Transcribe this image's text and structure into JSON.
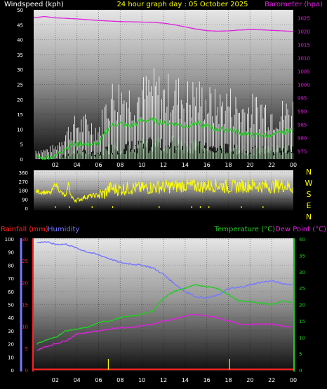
{
  "header": {
    "windspeed_label": "Windspeed (kph)",
    "title": "24 hour graph day : 05 October 2025",
    "barometer_label": "Barometer (hpa)"
  },
  "lower_header": {
    "rainfall_label": "Rainfall (mm)",
    "humidity_label": "Humidity",
    "temperature_label": "Temperature (°C)",
    "dewpoint_label": "Dew Point (°C)"
  },
  "compass": [
    "N",
    "W",
    "S",
    "E",
    "N"
  ],
  "colors": {
    "wind_gust": "#ffffff",
    "wind_avg": "#22cc22",
    "wind_low": "#ccffcc",
    "barometer": "#dd22dd",
    "direction": "#ffff00",
    "temperature": "#22cc22",
    "dewpoint": "#dd22dd",
    "humidity": "#7777ff",
    "rainfall": "#ff2222",
    "title": "#ffff00"
  },
  "chart_data": [
    {
      "type": "line",
      "id": "wind-baro",
      "xticks": [
        "02",
        "04",
        "06",
        "08",
        "10",
        "12",
        "14",
        "16",
        "18",
        "20",
        "22",
        "00"
      ],
      "left_axis": {
        "label": "Windspeed (kph)",
        "ylim": [
          0,
          50
        ],
        "ticks": [
          0,
          5,
          10,
          15,
          20,
          25,
          30,
          35,
          40,
          45,
          50
        ]
      },
      "right_axis": {
        "label": "Barometer (hpa)",
        "ylim": [
          972,
          1028
        ],
        "ticks": [
          975,
          980,
          985,
          990,
          995,
          1000,
          1005,
          1010,
          1015,
          1020,
          1025
        ]
      },
      "series": [
        {
          "name": "Windspeed (kph)",
          "axis": "left",
          "kind": "gust",
          "x": [
            0.2,
            1,
            2,
            3,
            4,
            5,
            6,
            7,
            8,
            9,
            10,
            11,
            12,
            13,
            14,
            15,
            16,
            17,
            18,
            19,
            20,
            21,
            22,
            23,
            24
          ],
          "y": [
            3,
            3,
            4,
            9,
            12,
            12,
            10,
            21,
            22,
            21,
            22,
            24,
            22,
            23,
            21,
            22,
            20,
            18,
            20,
            17,
            17,
            18,
            16,
            16,
            17
          ]
        },
        {
          "name": "Windspeed (kph)",
          "axis": "left",
          "kind": "average",
          "x": [
            0.2,
            1,
            2,
            3,
            4,
            5,
            6,
            7,
            8,
            9,
            10,
            11,
            12,
            13,
            14,
            15,
            16,
            17,
            18,
            19,
            20,
            21,
            22,
            23,
            24
          ],
          "y": [
            0.5,
            0.5,
            1,
            4,
            5,
            5,
            5,
            11,
            12,
            11,
            13,
            13,
            12,
            12,
            11,
            12,
            11,
            10,
            10,
            9,
            8,
            8,
            8,
            9,
            10
          ]
        },
        {
          "name": "Windspeed (kph)",
          "axis": "left",
          "kind": "low",
          "x": [
            0.2,
            1,
            2,
            3,
            4,
            5,
            6,
            7,
            8,
            9,
            10,
            11,
            12,
            13,
            14,
            15,
            16,
            17,
            18,
            19,
            20,
            21,
            22,
            23,
            24
          ],
          "y": [
            0,
            0,
            0,
            2,
            3,
            3,
            2,
            5,
            5,
            6,
            6,
            7,
            6,
            7,
            6,
            6,
            5,
            5,
            5,
            4,
            4,
            4,
            4,
            4,
            5
          ]
        },
        {
          "name": "Barometer (hpa)",
          "axis": "right",
          "x": [
            0,
            1,
            2,
            3,
            4,
            5,
            6,
            7,
            8,
            9,
            10,
            11,
            12,
            13,
            14,
            15,
            16,
            17,
            18,
            19,
            20,
            21,
            22,
            23,
            24
          ],
          "y": [
            1025,
            1025.5,
            1025,
            1024.8,
            1024.6,
            1024.3,
            1024,
            1023.8,
            1023.6,
            1023.5,
            1023.4,
            1023.3,
            1023,
            1022.4,
            1021.6,
            1020.8,
            1020.2,
            1020,
            1020.1,
            1020.4,
            1020.6,
            1020.5,
            1020.3,
            1020.1,
            1019.9
          ]
        }
      ]
    },
    {
      "type": "line",
      "id": "wind-direction",
      "xticks": [
        "02",
        "04",
        "06",
        "08",
        "10",
        "12",
        "14",
        "16",
        "18",
        "20",
        "22",
        "00"
      ],
      "left_axis": {
        "ylim": [
          0,
          360
        ],
        "ticks": [
          0,
          90,
          180,
          270,
          360
        ]
      },
      "series": [
        {
          "name": "Wind direction",
          "x": [
            0.2,
            1,
            1.6,
            2,
            2.5,
            3,
            3.2,
            3.5,
            4,
            5,
            6,
            6.5,
            7,
            8,
            9,
            10,
            11,
            12,
            13,
            14,
            15,
            16,
            17,
            18,
            19,
            20,
            21,
            22,
            23,
            24
          ],
          "y": [
            170,
            160,
            150,
            250,
            160,
            110,
            250,
            100,
            80,
            120,
            130,
            140,
            200,
            190,
            205,
            200,
            210,
            215,
            220,
            230,
            220,
            225,
            230,
            215,
            220,
            230,
            225,
            220,
            230,
            210
          ]
        }
      ]
    },
    {
      "type": "line",
      "id": "temp-hum-rain",
      "xticks": [
        "02",
        "04",
        "06",
        "08",
        "10",
        "12",
        "14",
        "16",
        "18",
        "20",
        "22",
        "00"
      ],
      "humidity_axis": {
        "label": "Humidity",
        "ylim": [
          0,
          100
        ],
        "ticks": [
          0,
          10,
          20,
          30,
          40,
          50,
          60,
          70,
          80,
          90,
          100
        ]
      },
      "rainfall_axis": {
        "label": "Rainfall (mm)",
        "ylim": [
          0,
          30
        ],
        "ticks": [
          0,
          5,
          10,
          15,
          20,
          25,
          30
        ]
      },
      "temperature_axis": {
        "label": "Temperature (°C)",
        "ylim": [
          0,
          40
        ],
        "ticks": [
          0,
          5,
          10,
          15,
          20,
          25,
          30,
          35,
          40
        ]
      },
      "series": [
        {
          "name": "Humidity",
          "axis": "humidity",
          "x": [
            0.3,
            1,
            2,
            3,
            4,
            5,
            6,
            7,
            8,
            9,
            10,
            11,
            12,
            13,
            14,
            15,
            16,
            17,
            18,
            19,
            20,
            21,
            22,
            23,
            24
          ],
          "y": [
            97,
            98,
            96,
            96,
            93,
            90,
            88,
            85,
            82,
            81,
            80,
            78,
            73,
            66,
            60,
            56,
            55,
            57,
            62,
            63,
            65,
            67,
            68,
            66,
            65
          ]
        },
        {
          "name": "Temperature (°C)",
          "axis": "temperature",
          "x": [
            0.3,
            1,
            2,
            3,
            4,
            5,
            6,
            7,
            8,
            9,
            10,
            11,
            12,
            13,
            14,
            15,
            16,
            17,
            18,
            19,
            20,
            21,
            22,
            23,
            24
          ],
          "y": [
            8,
            9,
            10,
            12,
            12.5,
            13,
            14.5,
            15,
            16,
            16.5,
            17,
            18,
            22,
            24,
            25,
            26,
            25.5,
            25,
            23,
            21,
            21,
            20.5,
            20,
            21,
            20.5
          ]
        },
        {
          "name": "Dew Point (°C)",
          "axis": "temperature",
          "x": [
            0.3,
            1,
            2,
            3,
            4,
            5,
            6,
            7,
            8,
            9,
            10,
            11,
            12,
            13,
            14,
            15,
            16,
            17,
            18,
            19,
            20,
            21,
            22,
            23,
            24
          ],
          "y": [
            6,
            7,
            8,
            9,
            11,
            11.5,
            12,
            12.5,
            13,
            13,
            13.5,
            14,
            15,
            15.5,
            16.5,
            17,
            16.5,
            16,
            15,
            14,
            14,
            14,
            14,
            13.5,
            13
          ]
        },
        {
          "name": "Rainfall (mm)",
          "axis": "rainfall",
          "x": [
            0,
            24
          ],
          "y": [
            0,
            0
          ]
        }
      ]
    }
  ]
}
